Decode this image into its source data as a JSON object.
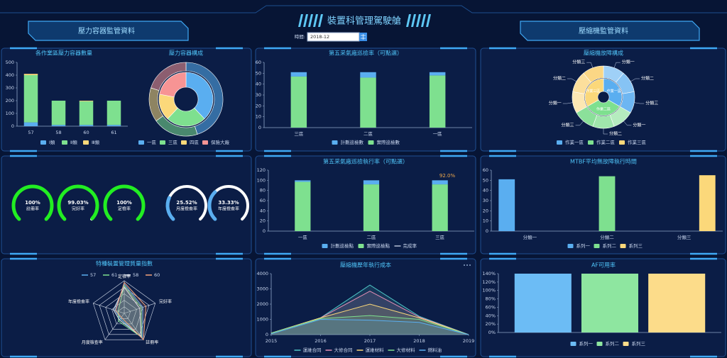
{
  "header": {
    "title": "裝置科管理駕駛艙",
    "left_banner": "壓力容器監管資料",
    "right_banner": "壓縮機監管資料",
    "date_label": "時間:",
    "date_value": "2018-12"
  },
  "chart_data": [
    {
      "type": "bar",
      "stacked": true,
      "title": "各作業區壓力容器數量",
      "categories": [
        "57",
        "58",
        "60",
        "61"
      ],
      "series": [
        {
          "name": "Ⅰ類",
          "color": "#5aaef0",
          "values": [
            30,
            10,
            10,
            10
          ]
        },
        {
          "name": "Ⅱ類",
          "color": "#7ee08f",
          "values": [
            370,
            190,
            185,
            190
          ]
        },
        {
          "name": "Ⅲ類",
          "color": "#fbd87a",
          "values": [
            10,
            0,
            5,
            0
          ]
        }
      ],
      "ylim": [
        0,
        500
      ],
      "yticks": [
        0,
        100,
        200,
        300,
        400,
        500
      ],
      "grid": false
    },
    {
      "type": "pie",
      "title": "壓力容器構成",
      "categories": [
        "一區",
        "三區",
        "四區",
        "保險大廠"
      ],
      "colors": [
        "#5aaef0",
        "#7ee08f",
        "#fbd87a",
        "#f79494"
      ],
      "rings": [
        {
          "values": [
            38,
            24,
            16,
            22
          ]
        },
        {
          "values": [
            45,
            20,
            15,
            20
          ]
        }
      ]
    },
    {
      "type": "bar",
      "stacked": true,
      "stack_reverse": true,
      "title": "第五采氣廠巡檢率（可點選）",
      "categories": [
        "三區",
        "二區",
        "一區"
      ],
      "series": [
        {
          "name": "計劃巡檢數",
          "color": "#5aaef0",
          "values": [
            4,
            5,
            3
          ]
        },
        {
          "name": "實際巡檢數",
          "color": "#7ee08f",
          "values": [
            47,
            46,
            48
          ]
        }
      ],
      "ylim": [
        0,
        60
      ],
      "yticks": [
        0,
        10,
        20,
        30,
        40,
        50,
        60
      ],
      "grid": false
    },
    {
      "type": "pie",
      "title": "壓縮機故障構成",
      "rings": [
        {
          "labels": [
            "作業一區",
            "作業二區",
            "作業三區"
          ],
          "values": [
            3,
            3,
            3
          ],
          "colors": [
            "#5aaef0",
            "#7ee08f",
            "#fbd87a"
          ]
        },
        {
          "labels": [
            "分類一",
            "分類二",
            "分類三",
            "分類一",
            "分類二",
            "分類三",
            "分類一",
            "分類二",
            "分類三"
          ],
          "values": [
            1,
            1,
            1,
            1,
            1,
            1,
            1,
            1,
            1
          ],
          "colors": [
            "#9fd0f7",
            "#86c3f4",
            "#6db6f2",
            "#b5ecbf",
            "#a0e6ac",
            "#8be09a",
            "#fde7b3",
            "#fcdf9c",
            "#fbd785"
          ]
        }
      ]
    },
    {
      "type": "gauge",
      "labels": [
        "註冊率",
        "完好率",
        "定檢率",
        "月度檢查率",
        "年度檢查率"
      ],
      "values": [
        100,
        99.03,
        100,
        25.52,
        33.33
      ],
      "value_labels": [
        "100%",
        "99.03%",
        "100%",
        "25.52%",
        "33.33%"
      ],
      "colors": [
        "#22ee22",
        "#22ee22",
        "#22ee22",
        "#5aaef0",
        "#5aaef0"
      ],
      "track_color": "#ffffff",
      "ylim": [
        0,
        100
      ]
    },
    {
      "type": "bar",
      "stacked": true,
      "stack_reverse": true,
      "title": "第五采氣廠巡檢執行率（可點選）",
      "categories": [
        "一區",
        "二區",
        "三區"
      ],
      "series": [
        {
          "name": "計劃巡檢點",
          "color": "#5aaef0",
          "values": [
            3,
            8,
            8
          ]
        },
        {
          "name": "實際巡檢點",
          "color": "#7ee08f",
          "values": [
            97,
            92,
            92
          ]
        },
        {
          "name": "完成率",
          "type": "line",
          "color": "#b8c2d6",
          "values": [
            null,
            null,
            null
          ]
        }
      ],
      "annotation": "92.0%",
      "ylim": [
        0,
        120
      ],
      "yticks": [
        0,
        20,
        40,
        60,
        80,
        100,
        120
      ],
      "grid": false
    },
    {
      "type": "bar",
      "title": "MTBF平均無故障執行時間",
      "categories": [
        "分類一",
        "分類二",
        "分類三"
      ],
      "series": [
        {
          "name": "系列一",
          "color": "#5aaef0",
          "values": [
            51,
            null,
            null
          ]
        },
        {
          "name": "系列二",
          "color": "#7ee08f",
          "values": [
            null,
            54,
            null
          ]
        },
        {
          "name": "系列三",
          "color": "#fbd87a",
          "values": [
            null,
            null,
            55
          ]
        }
      ],
      "ylim": [
        0,
        60
      ],
      "yticks": [
        0,
        10,
        20,
        30,
        40,
        50,
        60
      ],
      "grid": false
    },
    {
      "type": "radar",
      "title": "特種裝置管理質量指數",
      "indicators": [
        "定檢率",
        "完好率",
        "註冊率",
        "月度檢查率",
        "年度檢查率"
      ],
      "rlim": [
        0,
        100
      ],
      "series": [
        {
          "name": "57",
          "color": "#5aaef0",
          "values": [
            90,
            60,
            95,
            20,
            30
          ]
        },
        {
          "name": "61",
          "color": "#7ee08f",
          "values": [
            85,
            55,
            90,
            30,
            20
          ]
        },
        {
          "name": "58",
          "color": "#e0e6f0",
          "values": [
            80,
            50,
            88,
            25,
            35
          ]
        },
        {
          "name": "60",
          "color": "#f4a37a",
          "values": [
            95,
            70,
            100,
            15,
            28
          ]
        }
      ]
    },
    {
      "type": "line",
      "title": "壓縮機歷年執行成本",
      "x": [
        2015,
        2016,
        2017,
        2018,
        2019
      ],
      "series": [
        {
          "name": "運維合同",
          "color": "#4fc6c6",
          "values": [
            100,
            1100,
            3250,
            1200,
            0
          ]
        },
        {
          "name": "大修合同",
          "color": "#e58fb5",
          "values": [
            100,
            1100,
            2850,
            1150,
            0
          ]
        },
        {
          "name": "運維材料",
          "color": "#fbd87a",
          "values": [
            100,
            1100,
            2000,
            1100,
            0
          ]
        },
        {
          "name": "大修材料",
          "color": "#7ee08f",
          "values": [
            100,
            1050,
            1250,
            1000,
            0
          ]
        },
        {
          "name": "燃料油",
          "color": "#5aaef0",
          "values": [
            50,
            1000,
            950,
            800,
            0
          ]
        }
      ],
      "xlim": [
        2015,
        2019
      ],
      "xticks": [
        2015,
        2016,
        2017,
        2018,
        2019
      ],
      "ylim": [
        0,
        4000
      ],
      "yticks": [
        0,
        1000,
        2000,
        3000,
        4000
      ],
      "grid": false
    },
    {
      "type": "bar",
      "title": "AF可用率",
      "categories": [
        null
      ],
      "series": [
        {
          "name": "系列一",
          "color": "#6cbcf5",
          "values": [
            140
          ]
        },
        {
          "name": "系列二",
          "color": "#8ee6a0",
          "values": [
            140
          ]
        },
        {
          "name": "系列三",
          "color": "#fcdc8a",
          "values": [
            140
          ]
        }
      ],
      "ylim": [
        0,
        140
      ],
      "yticks": [
        {
          "value": 0,
          "label": "0%"
        },
        {
          "value": 20,
          "label": "20%"
        },
        {
          "value": 40,
          "label": "40%"
        },
        {
          "value": 60,
          "label": "60%"
        },
        {
          "value": 80,
          "label": "80%"
        },
        {
          "value": 100,
          "label": "100%"
        },
        {
          "value": 120,
          "label": "120%"
        },
        {
          "value": 140,
          "label": "140%"
        }
      ],
      "grid": false
    }
  ]
}
